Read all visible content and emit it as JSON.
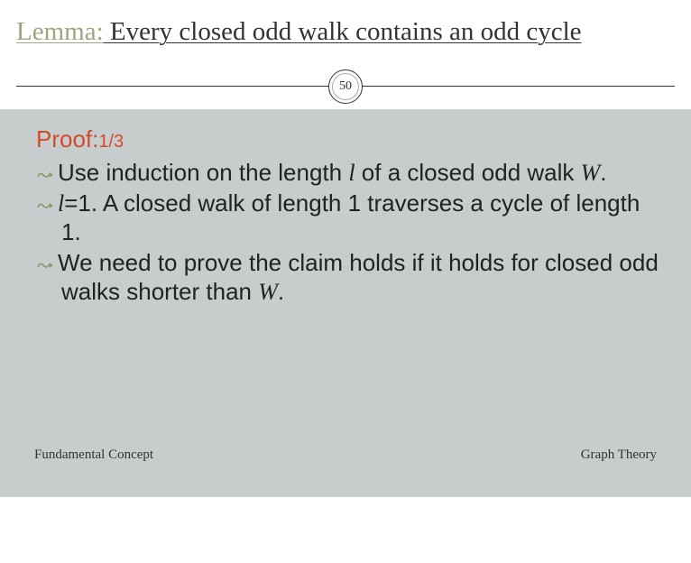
{
  "title": {
    "accent": "Lemma:",
    "rest": " Every closed odd walk contains an odd cycle"
  },
  "page_number": "50",
  "proof": {
    "label": "Proof:",
    "fraction": "1/3"
  },
  "bullets": [
    {
      "pre": "Use induction on the length ",
      "ital1": "l",
      "mid": " of a closed odd walk ",
      "ital2": "W",
      "post": "."
    },
    {
      "ital1": "l",
      "pre": "=1.  A closed walk of length 1 traverses a cycle of length 1.",
      "mid": "",
      "ital2": "",
      "post": ""
    },
    {
      "pre": "We need to prove the claim holds if it holds for closed odd walks shorter than ",
      "ital1": "W",
      "mid": ".",
      "ital2": "",
      "post": ""
    }
  ],
  "footer": {
    "left": "Fundamental Concept",
    "right": "Graph Theory"
  },
  "colors": {
    "accent_green": "#9aa77f",
    "proof_red": "#d44a2a",
    "content_bg": "#c7cdcd",
    "text": "#333333"
  }
}
